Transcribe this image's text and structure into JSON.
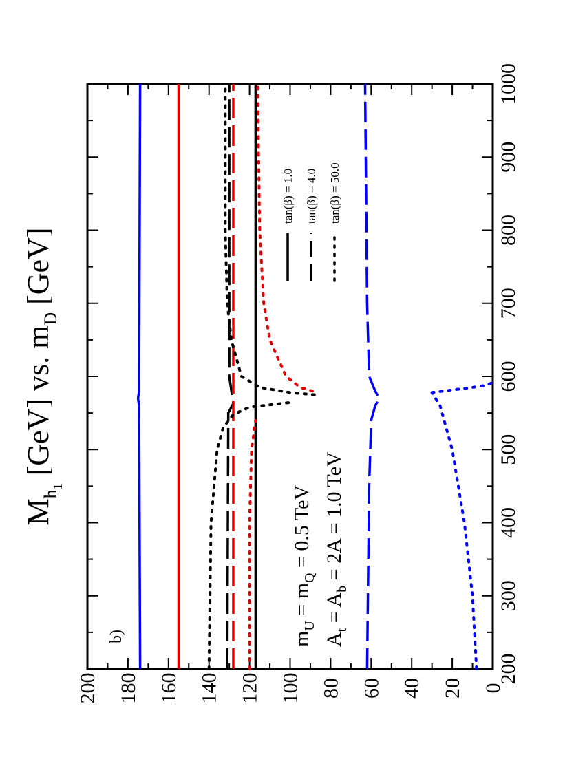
{
  "chart_data": {
    "type": "line",
    "orientation": "rotated-90-ccw",
    "title": {
      "main": "M",
      "main_sub": "h",
      "main_subsub": "1",
      "mid": " [GeV] vs. m",
      "end_sub": "D",
      "end": " [GeV]"
    },
    "panel_label": "b)",
    "xlim": [
      200,
      1000
    ],
    "ylim": [
      0,
      200
    ],
    "x_ticks": [
      "200",
      "300",
      "400",
      "500",
      "600",
      "700",
      "800",
      "900",
      "1000"
    ],
    "y_ticks": [
      "0",
      "20",
      "40",
      "60",
      "80",
      "100",
      "120",
      "140",
      "160",
      "180",
      "200"
    ],
    "annotations": {
      "line1_a": "m",
      "line1_a_sub": "U",
      "line1_b": " = m",
      "line1_b_sub": "Q",
      "line1_c": " = 0.5 TeV",
      "line2_a": "A",
      "line2_a_sub": "t",
      "line2_b": " = A",
      "line2_b_sub": "b",
      "line2_c": " = 2A = 1.0 TeV"
    },
    "legend": [
      {
        "label": "tan(β) = 1.0",
        "style": "solid"
      },
      {
        "label": "tan(β) = 4.0",
        "style": "dashed"
      },
      {
        "label": "tan(β) = 50.0",
        "style": "dotted"
      }
    ],
    "series": [
      {
        "style": "solid",
        "color": "#0000ff",
        "x": [
          200,
          560,
          570,
          580,
          1000
        ],
        "y": [
          174,
          174.5,
          175,
          174.5,
          174
        ]
      },
      {
        "style": "solid",
        "color": "#e00000",
        "x": [
          200,
          1000
        ],
        "y": [
          155,
          155
        ]
      },
      {
        "style": "solid",
        "color": "#000000",
        "x": [
          200,
          1000
        ],
        "y": [
          117,
          117
        ]
      },
      {
        "style": "dashed",
        "color": "#000000",
        "x": [
          200,
          550,
          563,
          600,
          1000
        ],
        "y": [
          131,
          130.5,
          128,
          130,
          130
        ]
      },
      {
        "style": "dashed",
        "color": "#e00000",
        "x": [
          200,
          1000
        ],
        "y": [
          128,
          128
        ]
      },
      {
        "style": "dashed",
        "color": "#0000ff",
        "x": [
          200,
          450,
          540,
          560,
          570,
          580,
          600,
          700,
          1000
        ],
        "y": [
          62,
          61,
          60,
          58,
          56,
          58,
          61,
          62,
          63
        ]
      },
      {
        "style": "dotted",
        "color": "#000000",
        "x": [
          200,
          400,
          500,
          530,
          548,
          558,
          565
        ],
        "y": [
          140,
          139,
          136,
          133,
          128,
          120,
          98
        ]
      },
      {
        "style": "dotted",
        "color": "#000000",
        "x": [
          575,
          578,
          585,
          600,
          650,
          700,
          800,
          1000
        ],
        "y": [
          88,
          100,
          115,
          124,
          129,
          131,
          132,
          132
        ]
      },
      {
        "style": "dotted",
        "color": "#e00000",
        "x": [
          200,
          400,
          500,
          540
        ],
        "y": [
          120,
          120,
          119,
          117
        ]
      },
      {
        "style": "dotted",
        "color": "#e00000",
        "x": [
          580,
          585,
          600,
          650,
          700,
          800,
          1000
        ],
        "y": [
          89,
          95,
          102,
          110,
          113,
          115,
          116
        ]
      },
      {
        "style": "dotted",
        "color": "#0000ff",
        "x": [
          200,
          300,
          400,
          500,
          560,
          578
        ],
        "y": [
          8,
          10,
          14,
          20,
          26,
          30
        ]
      },
      {
        "style": "dotted",
        "color": "#0000ff",
        "x": [
          578,
          585,
          588,
          592
        ],
        "y": [
          30,
          10,
          3,
          0
        ]
      }
    ]
  }
}
